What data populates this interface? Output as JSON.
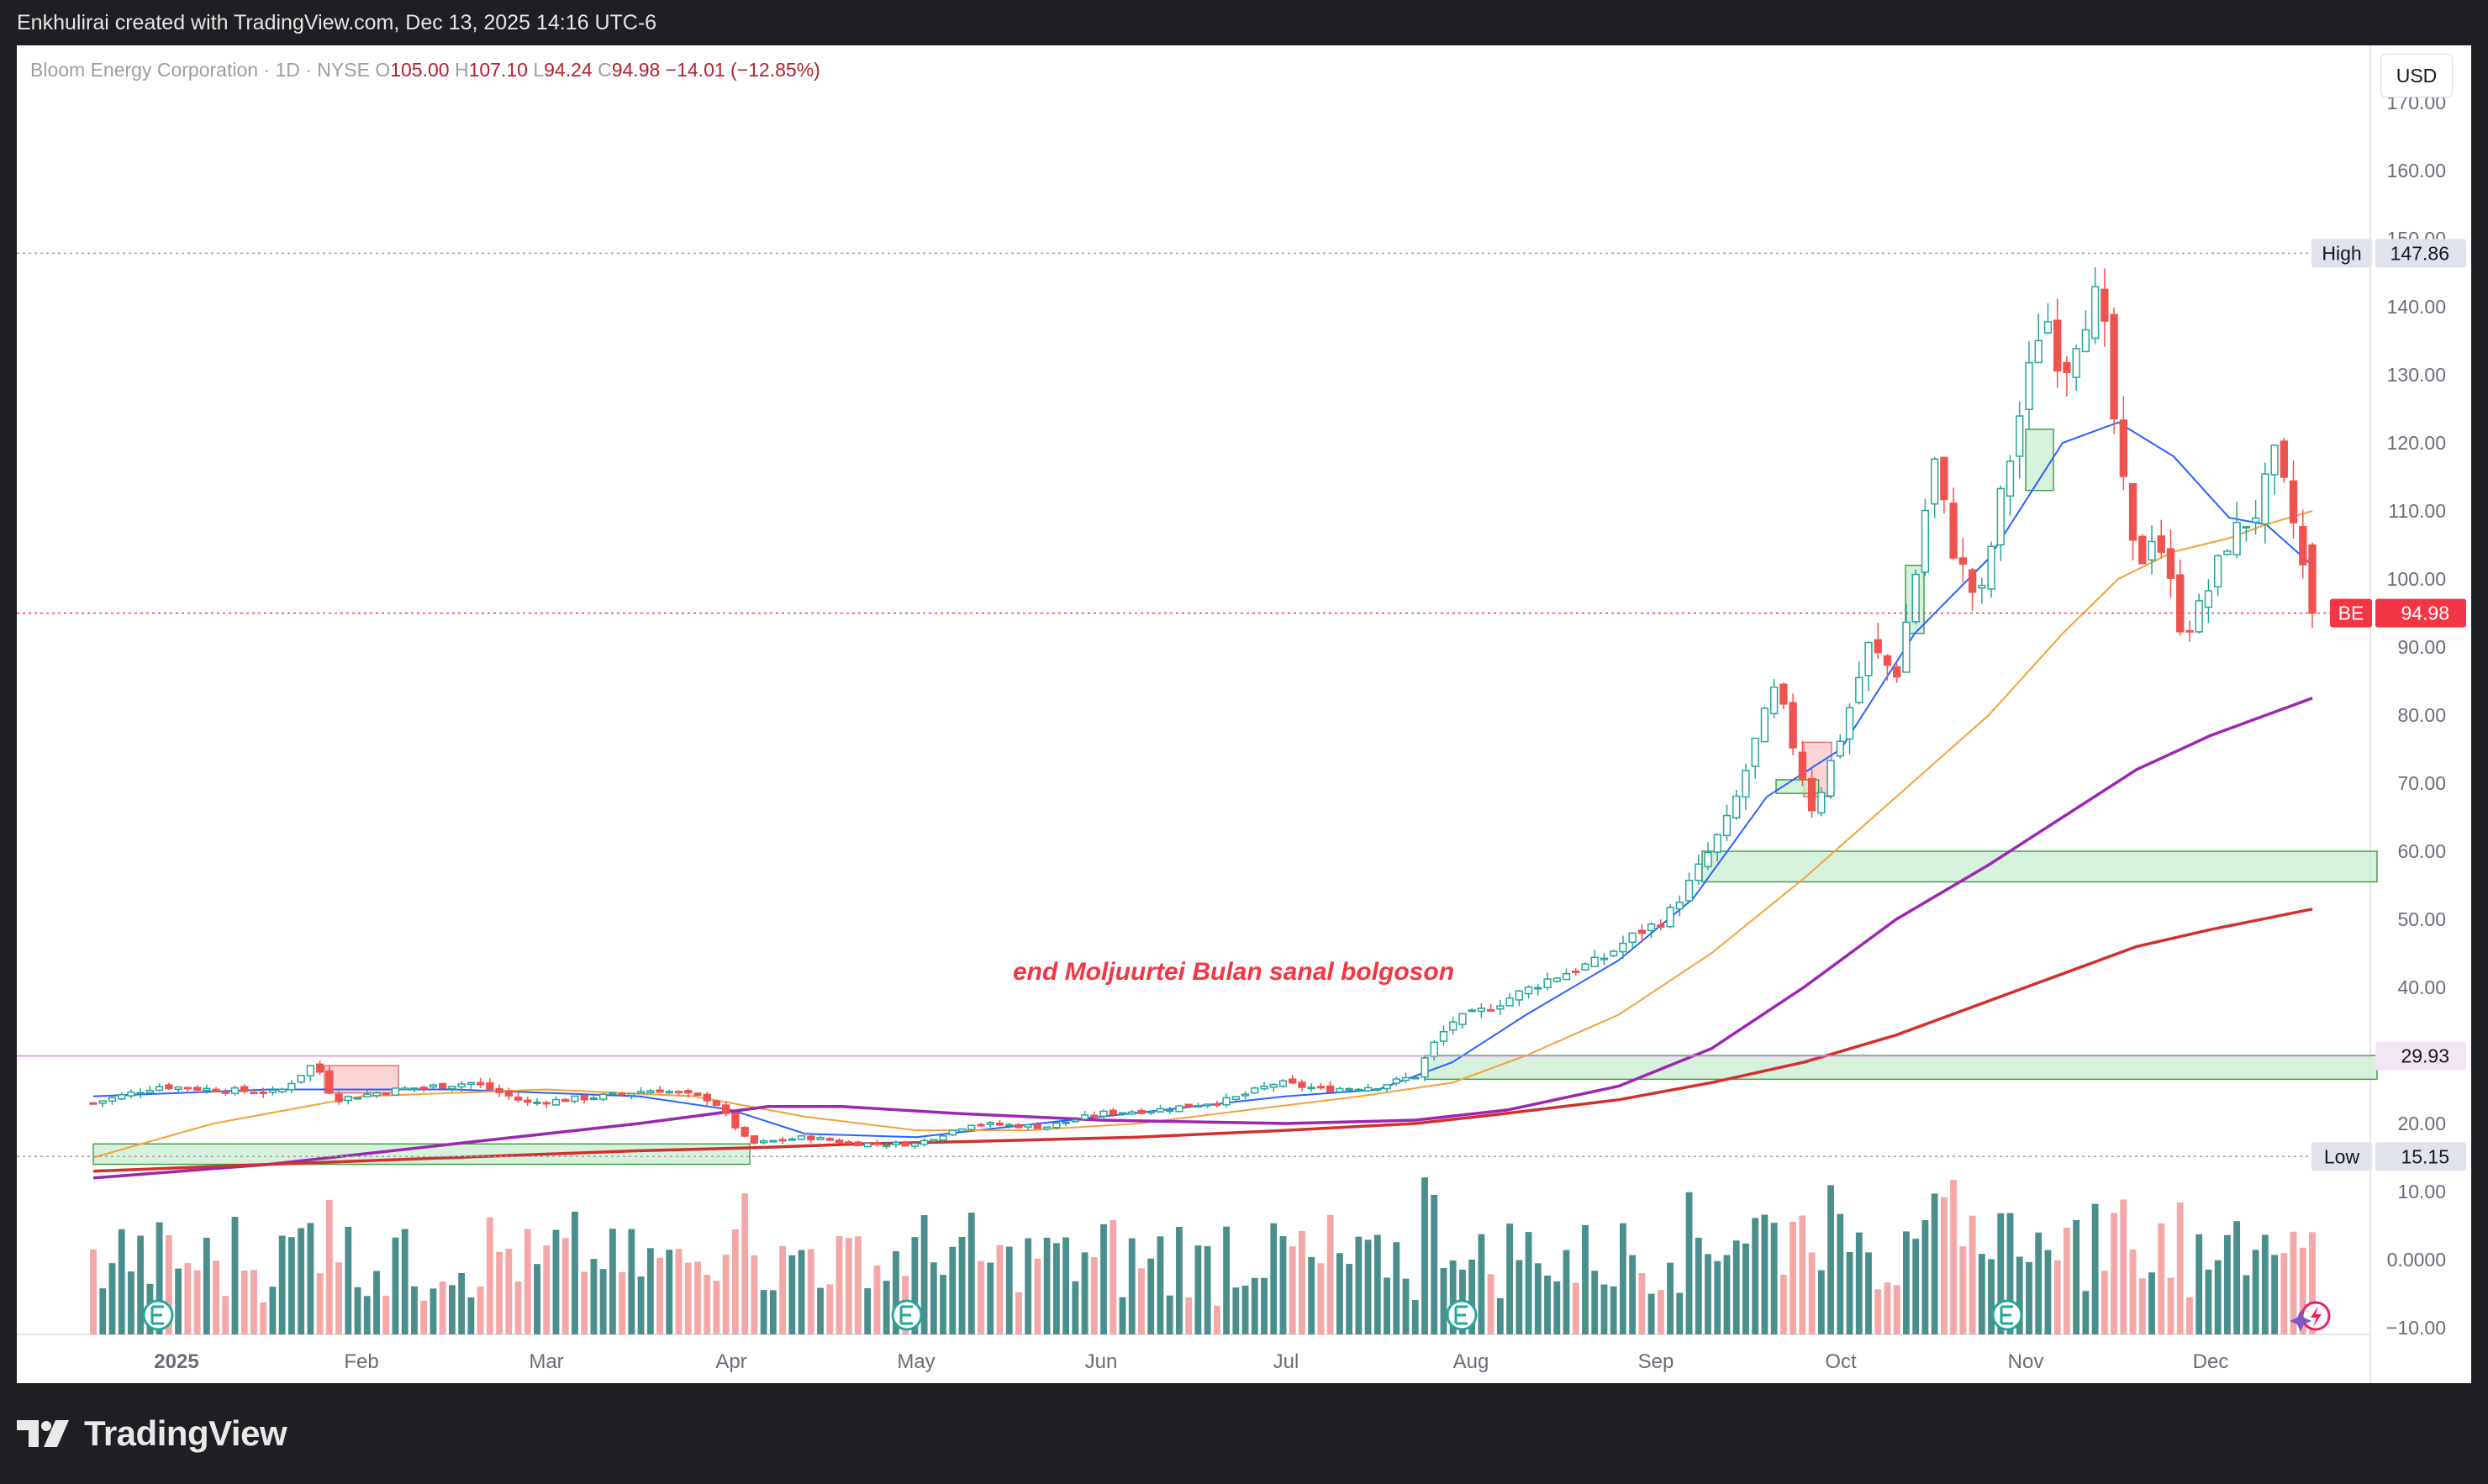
{
  "header": {
    "created_by": "Enkhulirai created with TradingView.com, Dec 13, 2025 14:16 UTC-6"
  },
  "legend": {
    "symbol": "Bloom Energy Corporation · 1D · NYSE",
    "o_label": "O",
    "o_value": "105.00",
    "h_label": "H",
    "h_value": "107.10",
    "l_label": "L",
    "l_value": "94.24",
    "c_label": "C",
    "c_value": "94.98",
    "change": "−14.01 (−12.85%)"
  },
  "currency_button": "USD",
  "brand": {
    "name": "TradingView"
  },
  "colors": {
    "up": "#26a69a",
    "down": "#ef5350",
    "vol_up": "#4b8f8c",
    "vol_down": "#f4a7a7",
    "ma_fast": "#2962ff",
    "ma_mid": "#f5a13a",
    "ma_slow": "#9c27b0",
    "ma_long": "#d32f2f",
    "annotation": "#f23645",
    "zone_green": "#c8ecd0",
    "zone_red": "#f9c7c7"
  },
  "chart_data": {
    "type": "candlestick",
    "symbol": "BE",
    "x_axis": {
      "labels": [
        {
          "text": "2025",
          "bold": true,
          "month": 0
        },
        {
          "text": "Feb",
          "month": 1
        },
        {
          "text": "Mar",
          "month": 2
        },
        {
          "text": "Apr",
          "month": 3
        },
        {
          "text": "May",
          "month": 4
        },
        {
          "text": "Jun",
          "month": 5
        },
        {
          "text": "Jul",
          "month": 6
        },
        {
          "text": "Aug",
          "month": 7
        },
        {
          "text": "Sep",
          "month": 8
        },
        {
          "text": "Oct",
          "month": 9
        },
        {
          "text": "Nov",
          "month": 10
        },
        {
          "text": "Dec",
          "month": 11
        }
      ]
    },
    "y_axis": {
      "min": -14,
      "max": 172,
      "ticks": [
        "170.00",
        "160.00",
        "150.00",
        "140.00",
        "130.00",
        "120.00",
        "110.00",
        "100.00",
        "90.00",
        "80.00",
        "70.00",
        "60.00",
        "50.00",
        "40.00",
        "30.00",
        "20.00",
        "10.00",
        "0.0000",
        "−10.00"
      ]
    },
    "price_labels": [
      {
        "title": "High",
        "value": "147.86",
        "price": 147.86
      },
      {
        "title": "BE",
        "value": "94.98",
        "price": 94.98
      },
      {
        "title": "",
        "value": "29.93",
        "price": 29.93
      },
      {
        "title": "Low",
        "value": "15.15",
        "price": 15.15
      }
    ],
    "annotation": "end Moljuurtei Bulan sanal bolgoson",
    "zones": [
      {
        "kind": "support",
        "month_from": 8.25,
        "month_to": 11.9,
        "price_from": 55.5,
        "price_to": 60
      },
      {
        "kind": "support",
        "month_from": 6.75,
        "month_to": 11.9,
        "price_from": 26.5,
        "price_to": 30
      },
      {
        "kind": "support",
        "month_from": -0.45,
        "month_to": 3.1,
        "price_from": 14,
        "price_to": 17
      },
      {
        "kind": "supply",
        "month_from": 0.8,
        "month_to": 1.2,
        "price_from": 24.5,
        "price_to": 28.5
      },
      {
        "kind": "supply",
        "month_from": 8.8,
        "month_to": 8.95,
        "price_from": 68,
        "price_to": 76
      },
      {
        "kind": "support",
        "month_from": 8.65,
        "month_to": 8.88,
        "price_from": 68.5,
        "price_to": 70.5
      },
      {
        "kind": "support",
        "month_from": 9.35,
        "month_to": 9.45,
        "price_from": 92,
        "price_to": 102
      },
      {
        "kind": "support",
        "month_from": 10.0,
        "month_to": 10.15,
        "price_from": 113,
        "price_to": 122
      }
    ],
    "earnings_months": [
      -0.1,
      3.95,
      6.95,
      9.9
    ],
    "anchors": [
      {
        "month": -0.45,
        "price": 23
      },
      {
        "month": -0.1,
        "price": 25.5
      },
      {
        "month": 0.2,
        "price": 25
      },
      {
        "month": 0.55,
        "price": 24.5
      },
      {
        "month": 0.75,
        "price": 29
      },
      {
        "month": 0.85,
        "price": 23.5
      },
      {
        "month": 1.2,
        "price": 25
      },
      {
        "month": 1.6,
        "price": 26
      },
      {
        "month": 1.9,
        "price": 23
      },
      {
        "month": 2.3,
        "price": 24
      },
      {
        "month": 2.6,
        "price": 25
      },
      {
        "month": 2.9,
        "price": 23.5
      },
      {
        "month": 3.1,
        "price": 17
      },
      {
        "month": 3.4,
        "price": 18
      },
      {
        "month": 3.7,
        "price": 17
      },
      {
        "month": 4.0,
        "price": 17
      },
      {
        "month": 4.3,
        "price": 20
      },
      {
        "month": 4.7,
        "price": 19.5
      },
      {
        "month": 5.0,
        "price": 21.5
      },
      {
        "month": 5.3,
        "price": 22
      },
      {
        "month": 5.7,
        "price": 23.5
      },
      {
        "month": 5.95,
        "price": 26
      },
      {
        "month": 6.2,
        "price": 25
      },
      {
        "month": 6.5,
        "price": 25.5
      },
      {
        "month": 6.7,
        "price": 27
      },
      {
        "month": 6.78,
        "price": 31
      },
      {
        "month": 6.9,
        "price": 35
      },
      {
        "month": 7.1,
        "price": 37
      },
      {
        "month": 7.4,
        "price": 41
      },
      {
        "month": 7.7,
        "price": 44
      },
      {
        "month": 7.9,
        "price": 48
      },
      {
        "month": 8.05,
        "price": 50
      },
      {
        "month": 8.2,
        "price": 56
      },
      {
        "month": 8.4,
        "price": 65
      },
      {
        "month": 8.55,
        "price": 77
      },
      {
        "month": 8.65,
        "price": 84
      },
      {
        "month": 8.75,
        "price": 75
      },
      {
        "month": 8.85,
        "price": 66
      },
      {
        "month": 9.0,
        "price": 77
      },
      {
        "month": 9.15,
        "price": 90
      },
      {
        "month": 9.3,
        "price": 86
      },
      {
        "month": 9.4,
        "price": 100
      },
      {
        "month": 9.5,
        "price": 118
      },
      {
        "month": 9.6,
        "price": 105
      },
      {
        "month": 9.75,
        "price": 96
      },
      {
        "month": 9.85,
        "price": 110
      },
      {
        "month": 10.0,
        "price": 128
      },
      {
        "month": 10.1,
        "price": 140
      },
      {
        "month": 10.2,
        "price": 130
      },
      {
        "month": 10.3,
        "price": 138
      },
      {
        "month": 10.4,
        "price": 142
      },
      {
        "month": 10.5,
        "price": 118
      },
      {
        "month": 10.6,
        "price": 101
      },
      {
        "month": 10.7,
        "price": 108
      },
      {
        "month": 10.85,
        "price": 92
      },
      {
        "month": 10.95,
        "price": 96
      },
      {
        "month": 11.1,
        "price": 106
      },
      {
        "month": 11.25,
        "price": 110
      },
      {
        "month": 11.35,
        "price": 118
      },
      {
        "month": 11.45,
        "price": 108
      },
      {
        "month": 11.55,
        "price": 94.98
      }
    ],
    "moving_averages": [
      {
        "color": "ma_fast",
        "width": 2,
        "points": [
          [
            -0.45,
            24
          ],
          [
            0.5,
            25
          ],
          [
            1.5,
            25
          ],
          [
            2.5,
            24
          ],
          [
            3.0,
            22
          ],
          [
            3.4,
            18.5
          ],
          [
            4.0,
            18
          ],
          [
            4.5,
            19.5
          ],
          [
            5.0,
            21
          ],
          [
            5.5,
            22.5
          ],
          [
            6.0,
            24
          ],
          [
            6.5,
            25
          ],
          [
            6.9,
            29
          ],
          [
            7.3,
            36
          ],
          [
            7.8,
            44
          ],
          [
            8.2,
            53
          ],
          [
            8.6,
            68
          ],
          [
            9.0,
            75
          ],
          [
            9.4,
            92
          ],
          [
            9.8,
            103
          ],
          [
            10.2,
            120
          ],
          [
            10.5,
            123
          ],
          [
            10.8,
            118
          ],
          [
            11.1,
            109
          ],
          [
            11.3,
            108
          ],
          [
            11.55,
            102
          ]
        ]
      },
      {
        "color": "ma_mid",
        "width": 2,
        "points": [
          [
            -0.45,
            15
          ],
          [
            0.2,
            20
          ],
          [
            1.0,
            24
          ],
          [
            2.0,
            25
          ],
          [
            2.8,
            24
          ],
          [
            3.4,
            21
          ],
          [
            4.0,
            19
          ],
          [
            4.6,
            19
          ],
          [
            5.2,
            20
          ],
          [
            5.8,
            22
          ],
          [
            6.4,
            24
          ],
          [
            6.9,
            26
          ],
          [
            7.3,
            30
          ],
          [
            7.8,
            36
          ],
          [
            8.3,
            45
          ],
          [
            8.8,
            56
          ],
          [
            9.3,
            68
          ],
          [
            9.8,
            80
          ],
          [
            10.2,
            92
          ],
          [
            10.5,
            100
          ],
          [
            10.8,
            104
          ],
          [
            11.1,
            106
          ],
          [
            11.3,
            108
          ],
          [
            11.55,
            110
          ]
        ]
      },
      {
        "color": "ma_slow",
        "width": 3.5,
        "points": [
          [
            -0.45,
            12
          ],
          [
            0.5,
            14
          ],
          [
            1.5,
            17
          ],
          [
            2.5,
            20
          ],
          [
            3.2,
            22.5
          ],
          [
            3.6,
            22.5
          ],
          [
            4.2,
            21.5
          ],
          [
            5.0,
            20.5
          ],
          [
            6.0,
            20
          ],
          [
            6.7,
            20.5
          ],
          [
            7.2,
            22
          ],
          [
            7.8,
            25.5
          ],
          [
            8.3,
            31
          ],
          [
            8.8,
            40
          ],
          [
            9.3,
            50
          ],
          [
            9.8,
            58
          ],
          [
            10.2,
            65
          ],
          [
            10.6,
            72
          ],
          [
            11.0,
            77
          ],
          [
            11.3,
            80
          ],
          [
            11.55,
            82.5
          ]
        ]
      },
      {
        "color": "ma_long",
        "width": 3.5,
        "points": [
          [
            -0.45,
            13
          ],
          [
            0.5,
            14
          ],
          [
            1.5,
            15
          ],
          [
            2.5,
            16
          ],
          [
            3.2,
            16.5
          ],
          [
            3.7,
            17
          ],
          [
            4.5,
            17.5
          ],
          [
            5.2,
            18
          ],
          [
            6.0,
            19
          ],
          [
            6.7,
            20
          ],
          [
            7.2,
            21.5
          ],
          [
            7.8,
            23.5
          ],
          [
            8.3,
            26
          ],
          [
            8.8,
            29
          ],
          [
            9.3,
            33
          ],
          [
            9.8,
            38
          ],
          [
            10.2,
            42
          ],
          [
            10.6,
            46
          ],
          [
            11.0,
            48.5
          ],
          [
            11.55,
            51.5
          ]
        ]
      }
    ]
  }
}
